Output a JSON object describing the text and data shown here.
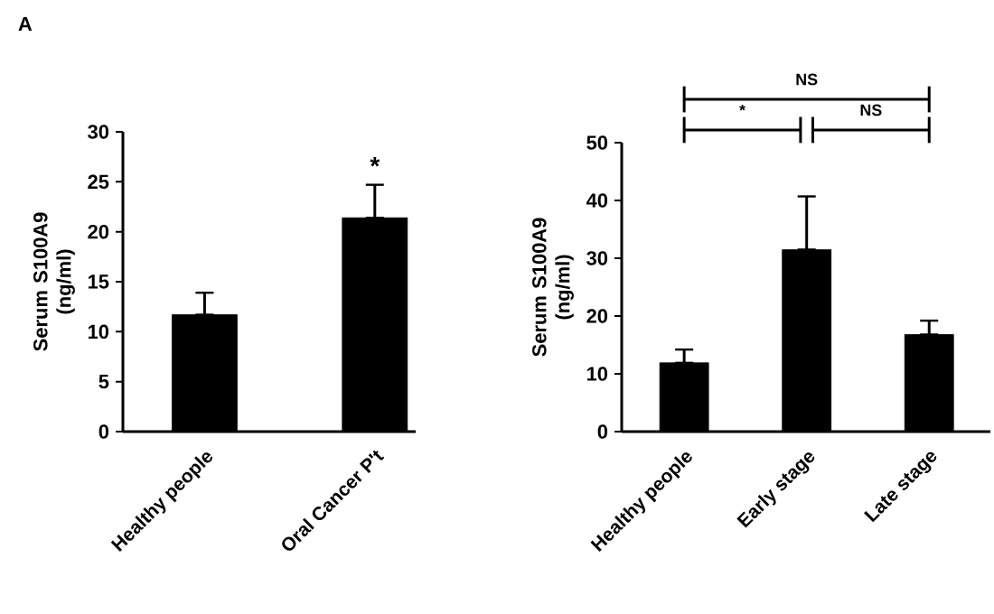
{
  "chart_data": [
    {
      "type": "bar",
      "ylabel": "Serum S100A9 (ng/ml)",
      "categories": [
        "Healthy people",
        "Oral Cancer P't"
      ],
      "values": [
        11.7,
        21.4
      ],
      "color": "#000000",
      "errors": [
        [
          11.7,
          13.9
        ],
        [
          21.4,
          24.7
        ]
      ],
      "ylim": [
        0,
        30
      ],
      "yticks": [
        0,
        5,
        10,
        15,
        20,
        25,
        30
      ],
      "annotations": [
        "A",
        "*"
      ]
    },
    {
      "type": "bar",
      "ylabel": "Serum S100A9 (ng/ml)",
      "categories": [
        "Healthy people",
        "Early stage",
        "Late stage"
      ],
      "values": [
        11.9,
        31.5,
        16.8
      ],
      "color": "#000000",
      "errors": [
        [
          11.9,
          14.2
        ],
        [
          31.5,
          40.7
        ],
        [
          16.8,
          19.2
        ]
      ],
      "ylim": [
        0,
        50
      ],
      "yticks": [
        0,
        10,
        20,
        30,
        40,
        50
      ],
      "annotations": [
        "*",
        "NS",
        "NS"
      ]
    }
  ]
}
